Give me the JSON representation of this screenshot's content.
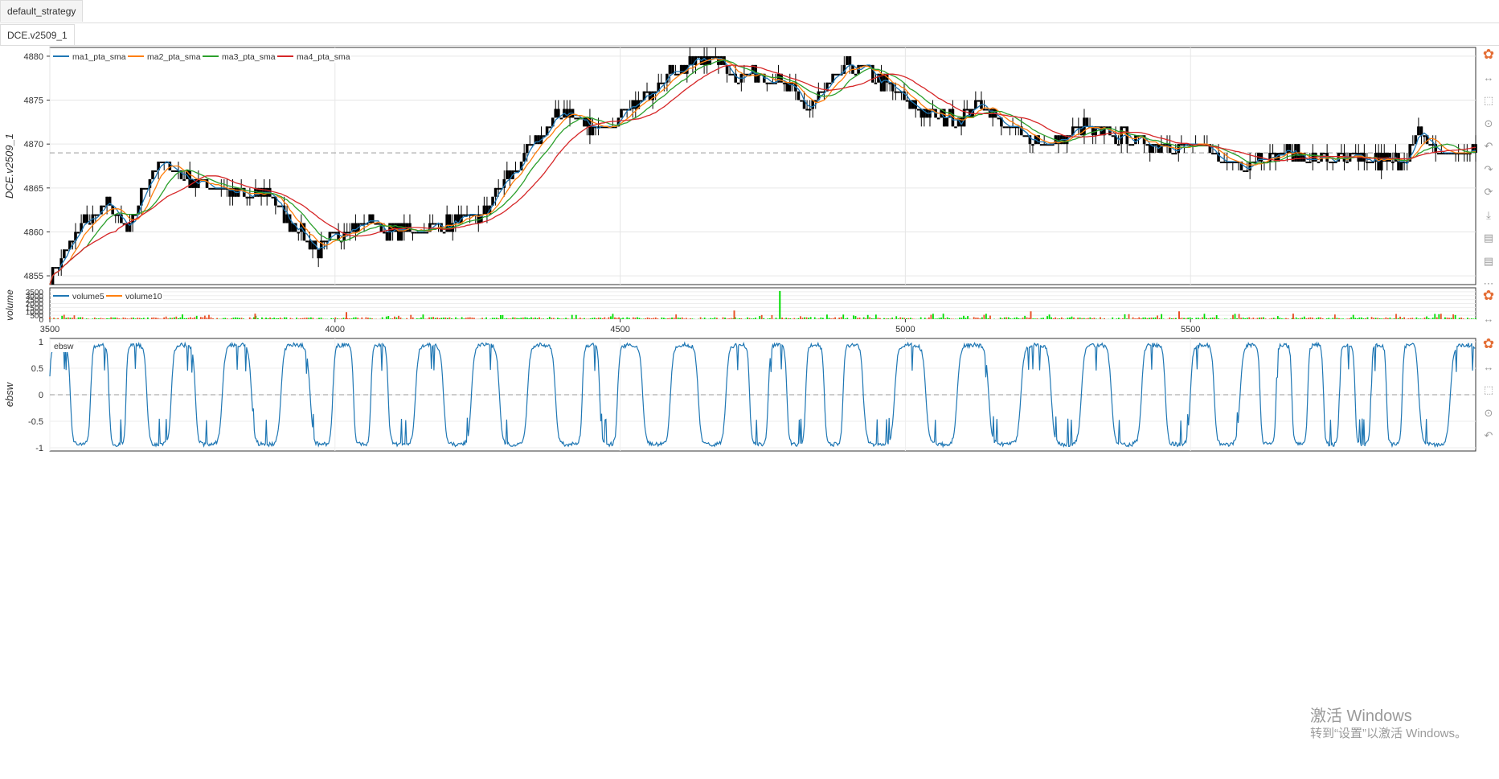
{
  "tabs": {
    "strategy": "default_strategy",
    "symbol": "DCE.v2509_1"
  },
  "watermark": {
    "line1": "激活 Windows",
    "line2": "转到“设置”以激活 Windows。"
  },
  "colors": {
    "ma1": "#1f77b4",
    "ma2": "#ff7f0e",
    "ma3": "#2ca02c",
    "ma4": "#d62728",
    "candle": "#000000",
    "vol_up": "#00dd00",
    "vol_down": "#e8532a",
    "ebsw": "#1f77b4"
  },
  "toolbar_icons": [
    "bokeh-logo-icon",
    "pan-icon",
    "box-zoom-icon",
    "wheel-zoom-icon",
    "undo-icon",
    "redo-icon",
    "reset-icon",
    "save-icon",
    "hover-icon",
    "crosshair-icon",
    "more-icon"
  ],
  "chart_data": [
    {
      "type": "candlestick",
      "ylabel": "DCE.v2509_1",
      "xlim": [
        3500,
        6000
      ],
      "ylim": [
        4854,
        4881
      ],
      "yticks": [
        4855,
        4860,
        4865,
        4870,
        4875,
        4880
      ],
      "reference_line": 4869,
      "legend": [
        "ma1_pta_sma",
        "ma2_pta_sma",
        "ma3_pta_sma",
        "ma4_pta_sma"
      ],
      "legend_position": "top-left",
      "price_path": {
        "x": [
          3500,
          3560,
          3600,
          3640,
          3670,
          3700,
          3740,
          3800,
          3850,
          3880,
          3920,
          3940,
          3970,
          4010,
          4040,
          4070,
          4100,
          4150,
          4200,
          4260,
          4300,
          4350,
          4400,
          4450,
          4480,
          4520,
          4550,
          4580,
          4620,
          4660,
          4700,
          4750,
          4800,
          4830,
          4860,
          4900,
          4940,
          4980,
          5020,
          5060,
          5100,
          5130,
          5170,
          5210,
          5250,
          5280,
          5310,
          5340,
          5380,
          5430,
          5460,
          5500,
          5530,
          5560,
          5600,
          5650,
          5680,
          5720,
          5760,
          5800,
          5840,
          5870,
          5900,
          5940,
          5960,
          5990,
          6000
        ],
        "y": [
          4855,
          4861,
          4863,
          4860,
          4866,
          4868,
          4866,
          4865,
          4864,
          4865,
          4861,
          4860,
          4858,
          4860,
          4861,
          4861,
          4860,
          4860,
          4861,
          4862,
          4866,
          4870,
          4874,
          4872,
          4872,
          4874,
          4876,
          4878,
          4879,
          4880,
          4878,
          4878,
          4876,
          4874,
          4876,
          4879,
          4878,
          4876,
          4874,
          4873,
          4873,
          4875,
          4872,
          4871,
          4870,
          4871,
          4872,
          4871,
          4871,
          4870,
          4870,
          4870,
          4869,
          4868,
          4868,
          4869,
          4869,
          4868,
          4868,
          4868,
          4868,
          4868,
          4871,
          4869,
          4869,
          4869,
          4869
        ]
      }
    },
    {
      "type": "bar",
      "ylabel": "volume",
      "xlim": [
        3500,
        6000
      ],
      "ylim": [
        0,
        4000
      ],
      "yticks": [
        0,
        500,
        1000,
        1500,
        2000,
        2500,
        3000,
        3500
      ],
      "xticks": [
        3500,
        4000,
        4500,
        5000,
        5500
      ],
      "legend": [
        "volume5",
        "volume10"
      ],
      "legend_position": "top-left",
      "spikes": [
        {
          "x": 4780,
          "value": 3600
        },
        {
          "x": 4700,
          "value": 1100
        },
        {
          "x": 5220,
          "value": 1000
        },
        {
          "x": 5480,
          "value": 1000
        },
        {
          "x": 4020,
          "value": 900
        },
        {
          "x": 3860,
          "value": 700
        },
        {
          "x": 5680,
          "value": 700
        }
      ]
    },
    {
      "type": "line",
      "title": "ebsw",
      "ylabel": "ebsw",
      "xlim": [
        3500,
        6000
      ],
      "ylim": [
        -1,
        1
      ],
      "yticks": [
        1,
        0.5,
        0,
        -0.5,
        -1
      ],
      "reference_line": 0,
      "series": [
        {
          "name": "ebsw",
          "oscillation": "square-like wave between -1 and 1, period about 22 bars"
        }
      ]
    }
  ]
}
